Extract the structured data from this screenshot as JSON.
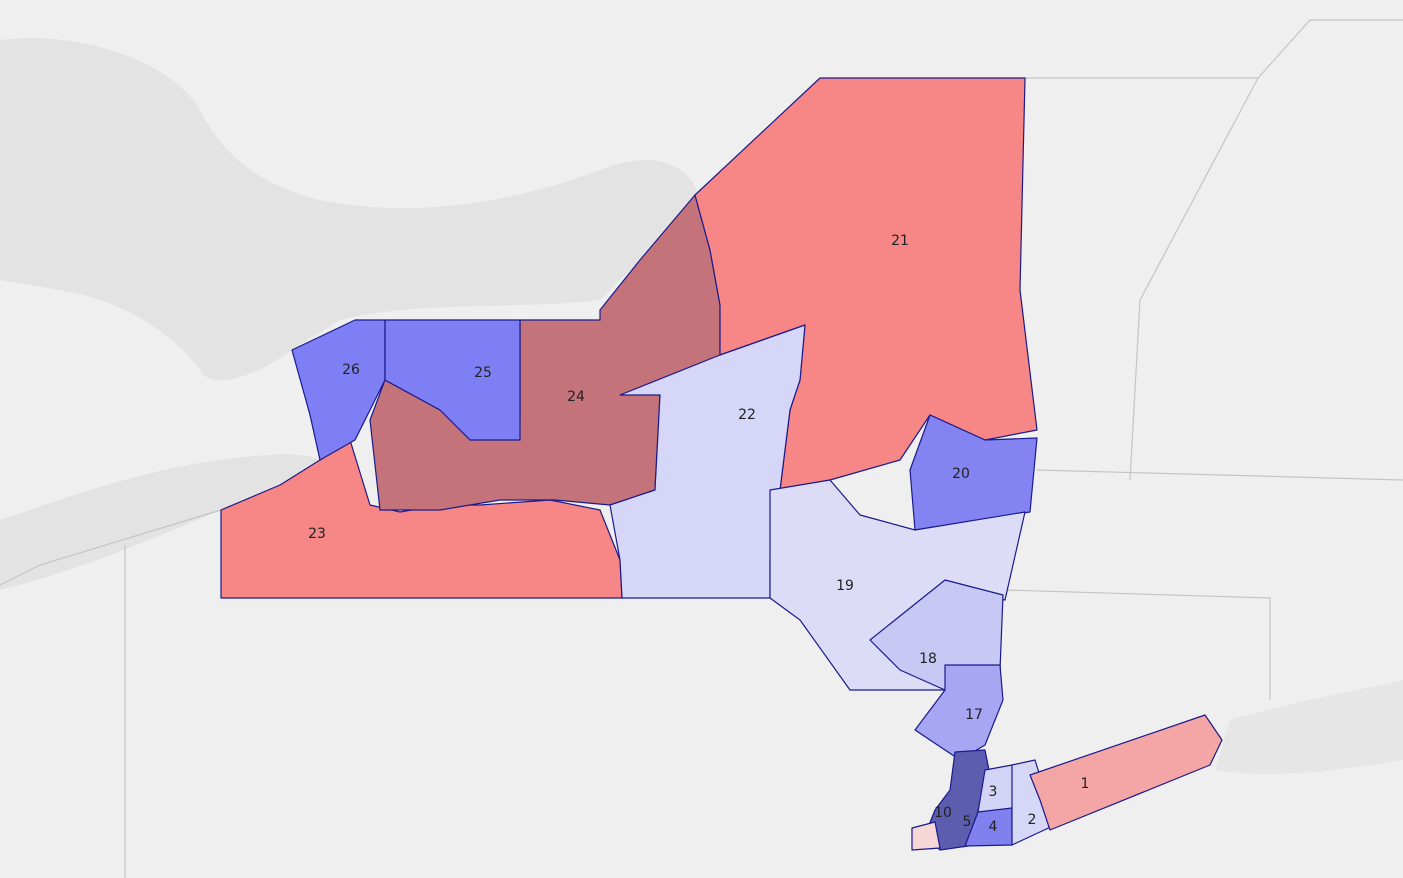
{
  "districts": [
    {
      "label": "26"
    },
    {
      "label": "25"
    },
    {
      "label": "24"
    },
    {
      "label": "23"
    },
    {
      "label": "22"
    },
    {
      "label": "21"
    },
    {
      "label": "20"
    },
    {
      "label": "19"
    },
    {
      "label": "18"
    },
    {
      "label": "17"
    },
    {
      "label": "1"
    },
    {
      "label": "2"
    },
    {
      "label": "3"
    },
    {
      "label": "4"
    },
    {
      "label": "5"
    },
    {
      "label": "10"
    }
  ]
}
